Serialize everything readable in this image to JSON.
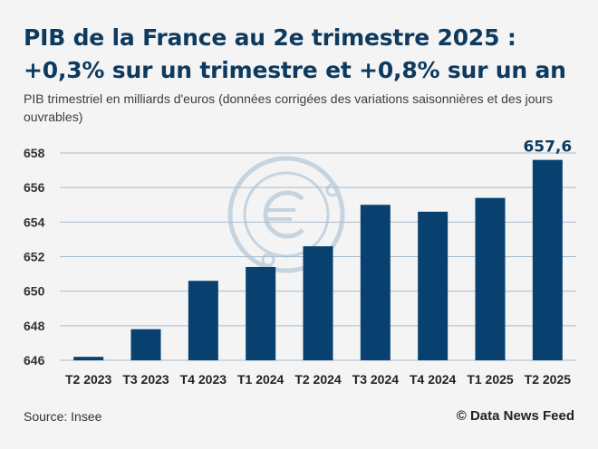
{
  "header": {
    "title": "PIB de la France au 2e trimestre 2025 : +0,3% sur un trimestre et +0,8% sur un an",
    "subtitle": "PIB trimestriel en milliards d'euros (données corrigées des variations saisonnières et des jours ouvrables)"
  },
  "footer": {
    "source": "Source: Insee",
    "credit": "© Data News Feed"
  },
  "chart_data": {
    "type": "bar",
    "title": "PIB de la France au 2e trimestre 2025 : +0,3% sur un trimestre et +0,8% sur un an",
    "subtitle": "PIB trimestriel en milliards d'euros (données corrigées des variations saisonnières et des jours ouvrables)",
    "categories": [
      "T2 2023",
      "T3 2023",
      "T4 2023",
      "T1 2024",
      "T2 2024",
      "T3 2024",
      "T4 2024",
      "T1 2025",
      "T2 2025"
    ],
    "values": [
      646.2,
      647.8,
      650.6,
      651.4,
      652.6,
      655.0,
      654.6,
      655.4,
      657.6
    ],
    "ylim": [
      646,
      658
    ],
    "yticks": [
      646,
      648,
      650,
      652,
      654,
      656,
      658
    ],
    "xlabel": "",
    "ylabel": "",
    "grid": true,
    "annotations": [
      {
        "category": "T2 2025",
        "text": "657,6"
      }
    ],
    "colors": {
      "bar": "#08416f",
      "grid": "#a9bccd",
      "watermark": "#c6d4e0"
    }
  }
}
